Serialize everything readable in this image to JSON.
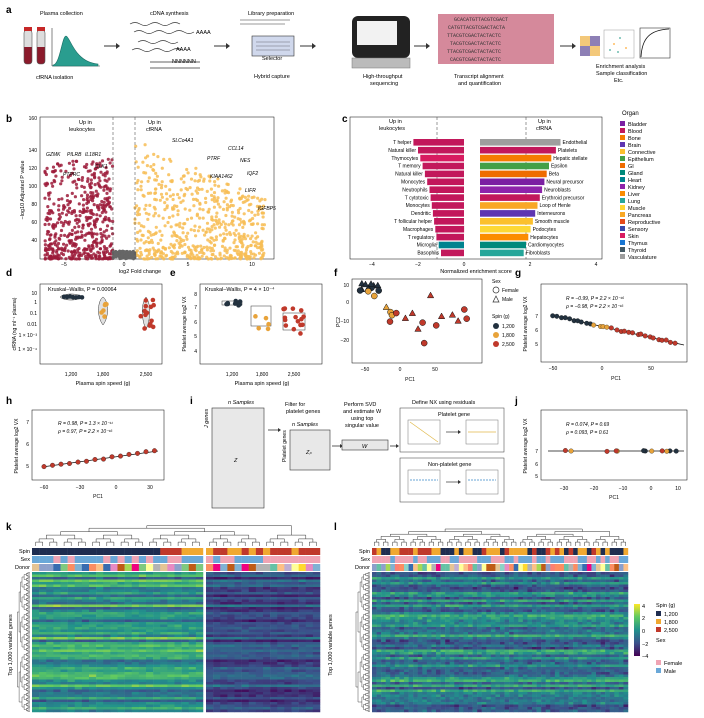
{
  "panels": {
    "a": "a",
    "b": "b",
    "c": "c",
    "d": "d",
    "e": "e",
    "f": "f",
    "g": "g",
    "h": "h",
    "i": "i",
    "j": "j",
    "k": "k",
    "l": "l"
  },
  "a": {
    "plasma": "Plasma collection",
    "cfrna": "cfRNA isolation",
    "cdna": "cDNA synthesis",
    "aaaa1": "AAAA",
    "aaaa2": "AAAA",
    "nn": "NNNNNN",
    "libprep": "Library preparation",
    "selector": "Selector",
    "hybrid": "Hybrid capture",
    "hts": [
      "High-throughput",
      "sequencing"
    ],
    "seqs": [
      "GCACATGTTACGTCGACT",
      "CATGTTACGTCGACTACTA",
      "TTACGTCGACTACTACTC",
      "TACGTCGACTACTACTC",
      "TTACGTCGACTACTACTC",
      "CACGTCGACTACTACTC"
    ],
    "align": [
      "Transcript alignment",
      "and quantification"
    ],
    "enrich": [
      "Enrichment analysis",
      "Sample classification",
      "Etc."
    ]
  },
  "b": {
    "up_leuk": [
      "Up in",
      "leukocytes"
    ],
    "up_cf": [
      "Up in",
      "cfRNA"
    ],
    "ylabel": "−log10 Adjusted P value",
    "xlabel": "log2 Fold change",
    "yticks": [
      "40",
      "60",
      "80",
      "100",
      "120",
      "140",
      "160"
    ],
    "xticks": [
      "−5",
      "0",
      "5",
      "10"
    ],
    "genes_left": [
      "GZMK",
      "PILRB",
      "IL18R1",
      "CLK1",
      "PTPRC"
    ],
    "genes_right": [
      "SLCo4A1",
      "CCL14",
      "PTRF",
      "NES",
      "KIAA1462",
      "IQF2",
      "LIFR",
      "IGFBP5"
    ]
  },
  "c": {
    "up_leuk": [
      "Up in",
      "leukocytes"
    ],
    "up_cf": [
      "Up in",
      "cfRNA"
    ],
    "xlabel": "Normalized enrichment score",
    "xticks": [
      "−4",
      "−2",
      "0",
      "2",
      "4"
    ],
    "left_cells": [
      "T helper",
      "Natural killer",
      "Thymocytes",
      "T memory",
      "Natural killer",
      "Monocytes",
      "Neutrophils",
      "T cytotoxic",
      "Monocytes",
      "Dendritic",
      "T follicular helper",
      "Macrophages",
      "T regulatory",
      "Microglia",
      "Basophils"
    ],
    "left_vals": [
      2.2,
      2.0,
      1.9,
      1.8,
      1.7,
      1.6,
      1.5,
      1.45,
      1.4,
      1.35,
      1.3,
      1.25,
      1.2,
      1.1,
      1.0
    ],
    "left_colors": [
      "#c2185b",
      "#c2185b",
      "#d81b60",
      "#c2185b",
      "#c2185b",
      "#c2185b",
      "#c2185b",
      "#c2185b",
      "#c2185b",
      "#c2185b",
      "#c2185b",
      "#c2185b",
      "#c2185b",
      "#00838f",
      "#c2185b"
    ],
    "right_cells": [
      "Endothelial",
      "Platelets",
      "Hepatic stellate",
      "Epsilon",
      "Beta",
      "Neural precursor",
      "Neuroblasts",
      "Erythroid precursor",
      "Loop of Henle",
      "Interneurons",
      "Smooth muscle",
      "Podocytes",
      "Hepatocytes",
      "Cardiomyocytes",
      "Fibroblasts"
    ],
    "right_vals": [
      3.5,
      3.3,
      3.1,
      3.0,
      2.9,
      2.8,
      2.7,
      2.6,
      2.5,
      2.4,
      2.3,
      2.2,
      2.1,
      2.0,
      1.9
    ],
    "right_colors": [
      "#9e9e9e",
      "#c2185b",
      "#f57c00",
      "#43a047",
      "#ef6c00",
      "#7b1fa2",
      "#8e24aa",
      "#c2185b",
      "#f9a825",
      "#5e35b1",
      "#fbc02d",
      "#fdd835",
      "#fb8c00",
      "#00897b",
      "#26a69a"
    ],
    "organ_title": "Organ",
    "organs": [
      "Bladder",
      "Blood",
      "Bone",
      "Brain",
      "Connective",
      "Epithelium",
      "GI",
      "Gland",
      "Heart",
      "Kidney",
      "Liver",
      "Lung",
      "Muscle",
      "Pancreas",
      "Reproductive",
      "Sensory",
      "Skin",
      "Thymus",
      "Thyroid",
      "Vasculature"
    ],
    "organ_colors": [
      "#7b1fa2",
      "#c2185b",
      "#f57c00",
      "#5e35b1",
      "#fbc02d",
      "#43a047",
      "#ef6c00",
      "#00897b",
      "#00838f",
      "#8e24aa",
      "#fb8c00",
      "#26a69a",
      "#fdd835",
      "#f9a825",
      "#e64a19",
      "#3949ab",
      "#d81b60",
      "#1976d2",
      "#455a64",
      "#9e9e9e"
    ]
  },
  "d": {
    "stat": "Kruskal–Wallis, P = 0.00064",
    "ylabel": "cfRNA (ng ml⁻¹ plasma)",
    "xlabel": "Plasma spin speed (g)",
    "yticks": [
      "10",
      "1",
      "0.1",
      "0.01",
      "1 × 10⁻³",
      "1 × 10⁻⁴"
    ],
    "xticks": [
      "1,200",
      "1,800",
      "2,500"
    ]
  },
  "e": {
    "stat": "Kruskal–Wallis, P = 4 × 10⁻⁴",
    "ylabel": "Platelet average log2 VX",
    "xlabel": "Plasma spin speed (g)",
    "yticks": [
      "8",
      "7",
      "6",
      "5",
      "4"
    ],
    "xticks": [
      "1,200",
      "1,800",
      "2,500"
    ]
  },
  "f": {
    "ylabel": "PC2",
    "xlabel": "PC1",
    "yticks": [
      "10",
      "0",
      "−10",
      "−20"
    ],
    "xticks": [
      "−50",
      "0",
      "50"
    ],
    "sex_title": "Sex",
    "female": "Female",
    "male": "Male",
    "spin_title": "Spin (g)",
    "spins": [
      "1,200",
      "1,800",
      "2,500"
    ]
  },
  "g": {
    "stat1": "R = −0.99, P = 2.2 × 10⁻¹⁶",
    "stat2": "ρ = −0.98, P = 2.2 × 10⁻¹⁶",
    "ylabel": "Platelet average log2 VX",
    "xlabel": "PC1",
    "yticks": [
      "7",
      "6",
      "5"
    ],
    "xticks": [
      "−50",
      "0",
      "50"
    ]
  },
  "h": {
    "stat1": "R = 0.98, P = 1.3 × 10⁻¹¹",
    "stat2": "ρ = 0.97, P = 2.2 × 10⁻¹⁶",
    "ylabel": "Platelet average log2 VX",
    "xlabel": "PC1",
    "yticks": [
      "7",
      "6",
      "5"
    ],
    "xticks": [
      "−60",
      "−30",
      "0",
      "30"
    ]
  },
  "i": {
    "nsamples": "n Samples",
    "jgenes": "J genes",
    "z": "Z",
    "filter": [
      "Filter for",
      "platelet genes"
    ],
    "nsamples2": "n Samples",
    "plgenes": "Platelet genes",
    "zp": "Zₚ",
    "svd": [
      "Perform SVD",
      "and estimate W",
      "using top",
      "singular value"
    ],
    "w": "W",
    "define": "Define NX using residuals",
    "platelet_gene": "Platelet gene",
    "nonplatelet_gene": "Non-platelet gene"
  },
  "j": {
    "stat1": "R = 0.074, P = 0.69",
    "stat2": "ρ = 0.093, P = 0.61",
    "ylabel": "Platelet average log2 VX",
    "xlabel": "PC1",
    "yticks": [
      "7",
      "6",
      "5"
    ],
    "xticks": [
      "−30",
      "−20",
      "−10",
      "0",
      "10"
    ]
  },
  "k": {
    "spin": "Spin",
    "sex": "Sex",
    "donor": "Donor",
    "ylabel": "Top 1,000 variable genes"
  },
  "l": {
    "spin": "Spin",
    "sex": "Sex",
    "donor": "Donor",
    "ylabel": "Top 1,000 variable genes"
  },
  "legend": {
    "scale": [
      "4",
      "2",
      "0",
      "−2",
      "−4"
    ],
    "spin_title": "Spin (g)",
    "spins": [
      "1,200",
      "1,800",
      "2,500"
    ],
    "sex_title": "Sex",
    "sexes": [
      "Female",
      "Male"
    ]
  }
}
